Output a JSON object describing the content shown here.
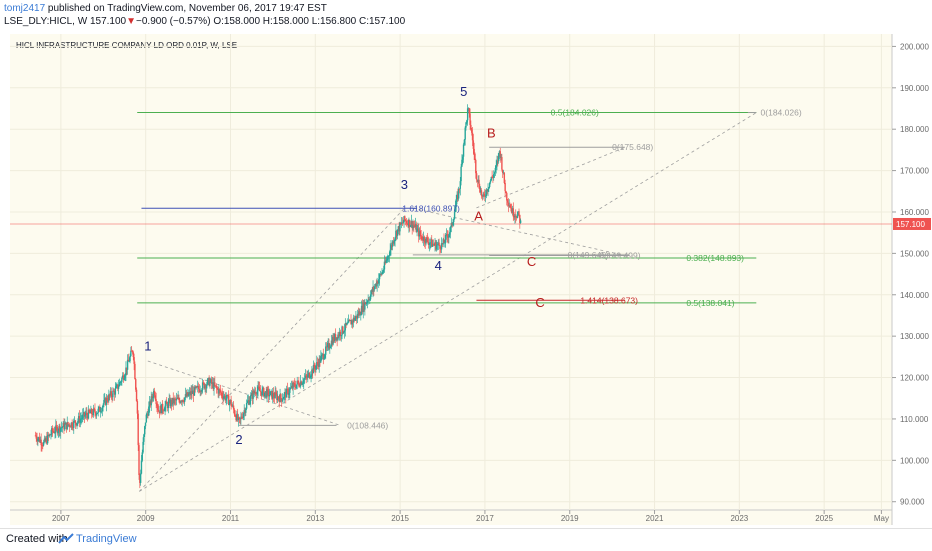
{
  "header": {
    "username": "tomj2417",
    "published_text": " published on TradingView.com, November 06, 2017 19:47 EST",
    "symbol": "LSE_DLY:HICL, W",
    "last": "157.100",
    "arrow": "▼",
    "change": "−0.900 (−0.57%)",
    "ohlc": "O:158.000 H:158.000 L:156.800 C:157.100"
  },
  "colors": {
    "background": "#fdfbef",
    "bull": "#26a69a",
    "bear": "#ef5350",
    "wave_blue": "#1a237e",
    "wave_red": "#b71c1c",
    "fib_green": "#4caf50",
    "fib_grey": "#9e9e9e",
    "fib_blue": "#3f51b5",
    "fib_red": "#c62828",
    "last_price_tag": "#ef5350"
  },
  "chart_data": {
    "type": "candlestick",
    "title": "HICL INFRASTRUCTURE COMPANY LD ORD 0.01P, W, LSE",
    "ylim": [
      88,
      203
    ],
    "xlim": [
      2005.8,
      2026.6
    ],
    "y_ticks": [
      "90.000",
      "100.000",
      "110.000",
      "120.000",
      "130.000",
      "140.000",
      "150.000",
      "160.000",
      "170.000",
      "180.000",
      "190.000",
      "200.000"
    ],
    "y_tick_values": [
      90,
      100,
      110,
      120,
      130,
      140,
      150,
      160,
      170,
      180,
      190,
      200
    ],
    "x_ticks": [
      "2007",
      "2009",
      "2011",
      "2013",
      "2015",
      "2017",
      "2019",
      "2021",
      "2023",
      "2025",
      "May"
    ],
    "x_tick_values": [
      2007,
      2009,
      2011,
      2013,
      2015,
      2017,
      2019,
      2021,
      2023,
      2025,
      2026.35
    ],
    "last_price": "157.100",
    "last_price_value": 157.1,
    "price_path": [
      [
        2006.4,
        106
      ],
      [
        2006.6,
        104
      ],
      [
        2006.8,
        107
      ],
      [
        2007.0,
        108
      ],
      [
        2007.3,
        109
      ],
      [
        2007.6,
        111
      ],
      [
        2007.9,
        112
      ],
      [
        2008.1,
        115
      ],
      [
        2008.3,
        117
      ],
      [
        2008.5,
        121
      ],
      [
        2008.7,
        127
      ],
      [
        2008.8,
        113
      ],
      [
        2008.85,
        93
      ],
      [
        2008.9,
        100
      ],
      [
        2009.0,
        110
      ],
      [
        2009.2,
        117
      ],
      [
        2009.3,
        112
      ],
      [
        2009.6,
        114
      ],
      [
        2009.9,
        115
      ],
      [
        2010.2,
        117
      ],
      [
        2010.5,
        119
      ],
      [
        2010.8,
        116
      ],
      [
        2011.0,
        114
      ],
      [
        2011.2,
        109
      ],
      [
        2011.4,
        114
      ],
      [
        2011.6,
        117
      ],
      [
        2011.9,
        116
      ],
      [
        2012.2,
        115
      ],
      [
        2012.5,
        118
      ],
      [
        2012.8,
        120
      ],
      [
        2013.1,
        124
      ],
      [
        2013.4,
        129
      ],
      [
        2013.7,
        132
      ],
      [
        2014.0,
        135
      ],
      [
        2014.3,
        140
      ],
      [
        2014.6,
        146
      ],
      [
        2014.9,
        155
      ],
      [
        2015.1,
        158
      ],
      [
        2015.3,
        157
      ],
      [
        2015.5,
        154
      ],
      [
        2015.8,
        152
      ],
      [
        2016.0,
        152
      ],
      [
        2016.2,
        156
      ],
      [
        2016.4,
        166
      ],
      [
        2016.5,
        177
      ],
      [
        2016.6,
        185
      ],
      [
        2016.7,
        178
      ],
      [
        2016.8,
        169
      ],
      [
        2016.95,
        163
      ],
      [
        2017.1,
        167
      ],
      [
        2017.25,
        170
      ],
      [
        2017.35,
        175
      ],
      [
        2017.5,
        164
      ],
      [
        2017.65,
        160
      ],
      [
        2017.8,
        159
      ],
      [
        2017.85,
        157
      ]
    ],
    "wave_labels_blue": [
      {
        "text": "1",
        "x": 2009.05,
        "y": 126.5
      },
      {
        "text": "2",
        "x": 2011.2,
        "y": 104
      },
      {
        "text": "3",
        "x": 2015.1,
        "y": 165.5
      },
      {
        "text": "4",
        "x": 2015.9,
        "y": 146
      },
      {
        "text": "5",
        "x": 2016.5,
        "y": 188
      }
    ],
    "wave_labels_red": [
      {
        "text": "A",
        "x": 2016.85,
        "y": 158
      },
      {
        "text": "B",
        "x": 2017.15,
        "y": 178
      },
      {
        "text": "C",
        "x": 2018.1,
        "y": 147
      },
      {
        "text": "C",
        "x": 2018.3,
        "y": 137
      }
    ],
    "fib_levels": [
      {
        "label": "0.5(184.026)",
        "value": 184.026,
        "x0": 2008.8,
        "x1": 2023.4,
        "label_x": 2018.55,
        "color": "fib_green"
      },
      {
        "label": "0(184.026)",
        "value": 184.026,
        "x0": 2023.2,
        "x1": 2023.4,
        "label_x": 2023.5,
        "color": "fib_grey"
      },
      {
        "label": "0(175.648)",
        "value": 175.648,
        "x0": 2017.1,
        "x1": 2020.3,
        "label_x": 2020.0,
        "color": "fib_grey"
      },
      {
        "label": "1.618(160.897)",
        "value": 160.897,
        "x0": 2008.9,
        "x1": 2015.4,
        "label_x": 2015.05,
        "color": "fib_blue"
      },
      {
        "label": "0(149.645)",
        "value": 149.645,
        "x0": 2015.3,
        "x1": 2020.4,
        "label_x": 2018.95,
        "color": "fib_grey"
      },
      {
        "label": "0(149.499)",
        "value": 149.499,
        "x0": 2017.1,
        "x1": 2020.4,
        "label_x": 2019.7,
        "color": "fib_grey"
      },
      {
        "label": "0.382(148.893)",
        "value": 148.893,
        "x0": 2008.8,
        "x1": 2023.4,
        "label_x": 2021.75,
        "color": "fib_green"
      },
      {
        "label": "1.414(138.673)",
        "value": 138.673,
        "x0": 2016.8,
        "x1": 2020.3,
        "label_x": 2019.25,
        "color": "fib_red"
      },
      {
        "label": "0.5(138.041)",
        "value": 138.041,
        "x0": 2008.8,
        "x1": 2023.4,
        "label_x": 2021.75,
        "color": "fib_green"
      },
      {
        "label": "0(108.446)",
        "value": 108.446,
        "x0": 2011.2,
        "x1": 2013.5,
        "label_x": 2013.75,
        "color": "fib_grey"
      }
    ],
    "dashed_lines": [
      [
        [
          2008.85,
          92.5
        ],
        [
          2015.1,
          160.9
        ]
      ],
      [
        [
          2008.85,
          92.5
        ],
        [
          2023.4,
          184.0
        ]
      ],
      [
        [
          2009.05,
          124
        ],
        [
          2013.6,
          108.4
        ]
      ],
      [
        [
          2015.3,
          160.9
        ],
        [
          2020.3,
          149.5
        ]
      ],
      [
        [
          2016.8,
          161
        ],
        [
          2020.3,
          175.6
        ]
      ]
    ]
  }
}
